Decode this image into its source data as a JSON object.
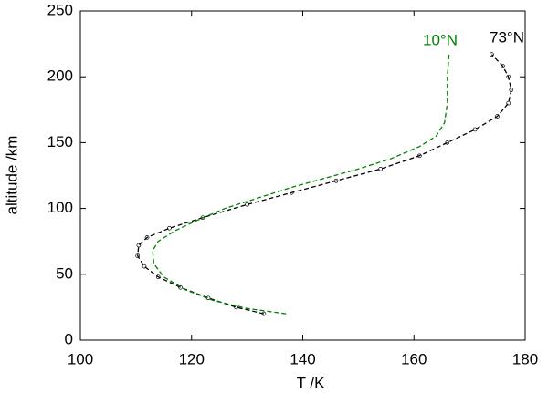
{
  "chart_data": {
    "type": "line",
    "x_label": "T /K",
    "y_label": "altitude /km",
    "xlim": [
      100,
      180
    ],
    "xticks": [
      100,
      120,
      140,
      160,
      180
    ],
    "ylim": [
      0,
      250
    ],
    "yticks": [
      0,
      50,
      100,
      150,
      200,
      250
    ],
    "annotations": [
      "10°N",
      "73°N"
    ],
    "series": [
      {
        "name": "73°N",
        "color": "#000000",
        "markers": true,
        "x": [
          133,
          128,
          123,
          118,
          114,
          111.5,
          110.3,
          110.5,
          112,
          116,
          122,
          130,
          138,
          146,
          154,
          161,
          166,
          171,
          175,
          177,
          177.5,
          177,
          176,
          174
        ],
        "values": [
          20,
          25,
          32,
          40,
          48,
          56,
          64,
          72,
          78,
          85,
          93,
          103,
          112,
          121,
          130,
          140,
          150,
          160,
          170,
          180,
          190,
          200,
          208,
          217
        ]
      },
      {
        "name": "10°N",
        "color": "#008000",
        "markers": false,
        "x": [
          137,
          130,
          124,
          119,
          115,
          113.2,
          113,
          114,
          117,
          121,
          126,
          132,
          138,
          144,
          150,
          156,
          161,
          164,
          165.5,
          166,
          166,
          166.3
        ],
        "values": [
          20,
          24,
          30,
          38,
          48,
          58,
          68,
          75,
          83,
          91,
          100,
          108,
          116,
          123,
          130,
          138,
          147,
          155,
          165,
          180,
          200,
          217
        ]
      }
    ]
  }
}
